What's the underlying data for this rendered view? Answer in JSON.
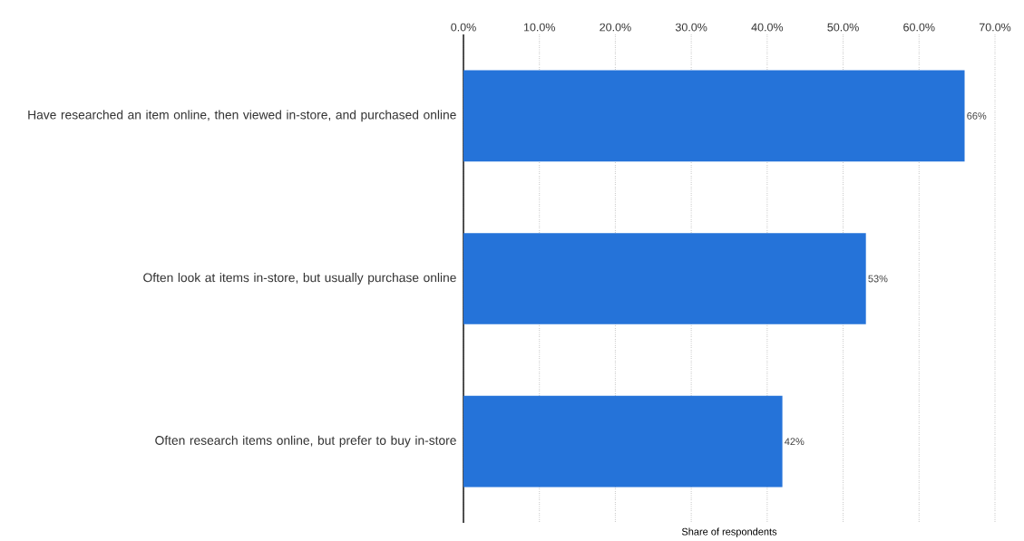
{
  "chart_data": {
    "type": "bar",
    "orientation": "horizontal",
    "xlabel": "Share of respondents",
    "categories": [
      "Have researched an item online, then viewed in-store, and purchased online",
      "Often look at items in-store, but usually purchase online",
      "Often research items online, but prefer to buy in-store"
    ],
    "values": [
      66,
      53,
      42
    ],
    "value_labels": [
      "66%",
      "53%",
      "42%"
    ],
    "color": "#2573d9",
    "xlim": [
      0,
      70
    ],
    "xticks": [
      {
        "value": 0,
        "label": "0.0%"
      },
      {
        "value": 10,
        "label": "10.0%"
      },
      {
        "value": 20,
        "label": "20.0%"
      },
      {
        "value": 30,
        "label": "30.0%"
      },
      {
        "value": 40,
        "label": "40.0%"
      },
      {
        "value": 50,
        "label": "50.0%"
      },
      {
        "value": 60,
        "label": "60.0%"
      },
      {
        "value": 70,
        "label": "70.0%"
      }
    ],
    "grid": "x"
  }
}
